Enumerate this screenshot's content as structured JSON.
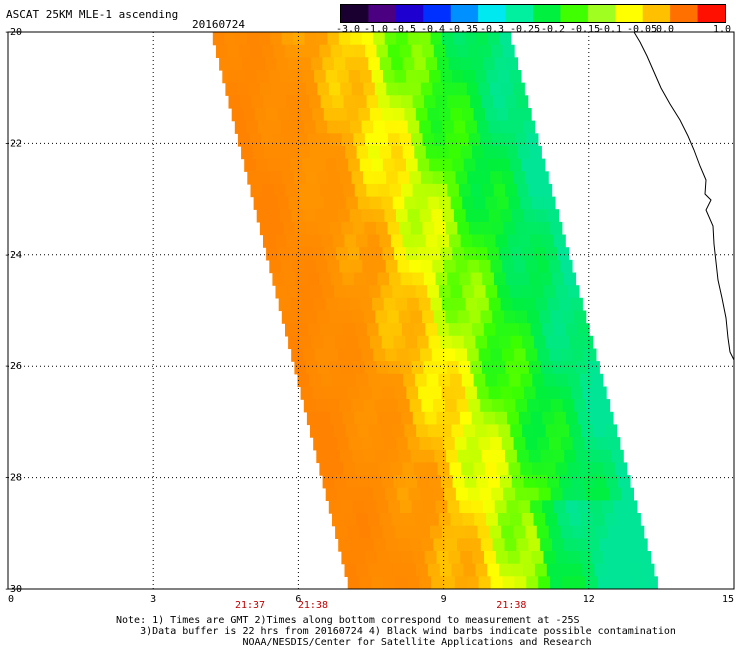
{
  "header": {
    "title": "ASCAT 25KM MLE-1 ascending",
    "date": "20160724"
  },
  "colorbar": {
    "labels": [
      "-3.0",
      "-1.0",
      "-0.5",
      "-0.4",
      "-0.35",
      "-0.3",
      "-0.25",
      "-0.2",
      "-0.15",
      "-0.1",
      "-0.05",
      "0.0",
      "1.0"
    ],
    "colors": [
      "#1a0030",
      "#4b0082",
      "#1e00d0",
      "#0030ff",
      "#0090ff",
      "#00e8f0",
      "#00f0a0",
      "#00f040",
      "#40ff00",
      "#a0ff20",
      "#ffff00",
      "#ffc000",
      "#ff7000",
      "#ff1000"
    ]
  },
  "axes": {
    "x_ticks": [
      "0",
      "3",
      "6",
      "9",
      "12",
      "15"
    ],
    "y_ticks": [
      "-20",
      "-22",
      "-24",
      "-26",
      "-28",
      "-30"
    ],
    "xlim": [
      0,
      15
    ],
    "ylim": [
      -30,
      -20
    ]
  },
  "times": [
    {
      "label": "21:37",
      "x": 5.0
    },
    {
      "label": "21:38",
      "x": 6.3
    },
    {
      "label": "21:38",
      "x": 10.4
    }
  ],
  "swath": {
    "left_edge": [
      [
        4.2,
        -20
      ],
      [
        7.05,
        -30
      ]
    ],
    "right_edge": [
      [
        10.35,
        -20
      ],
      [
        13.45,
        -30
      ]
    ]
  },
  "note": {
    "line1": "Note: 1) Times are GMT 2)Times along bottom correspond to measurement at -25S",
    "line2": "3)Data buffer is 22 hrs from 20160724 4) Black wind barbs indicate possible contamination",
    "line3": "NOAA/NESDIS/Center for Satellite Applications and Research"
  },
  "colors": {
    "time_label": "#c00000",
    "coastline": "#000000",
    "grid": "#000000"
  }
}
